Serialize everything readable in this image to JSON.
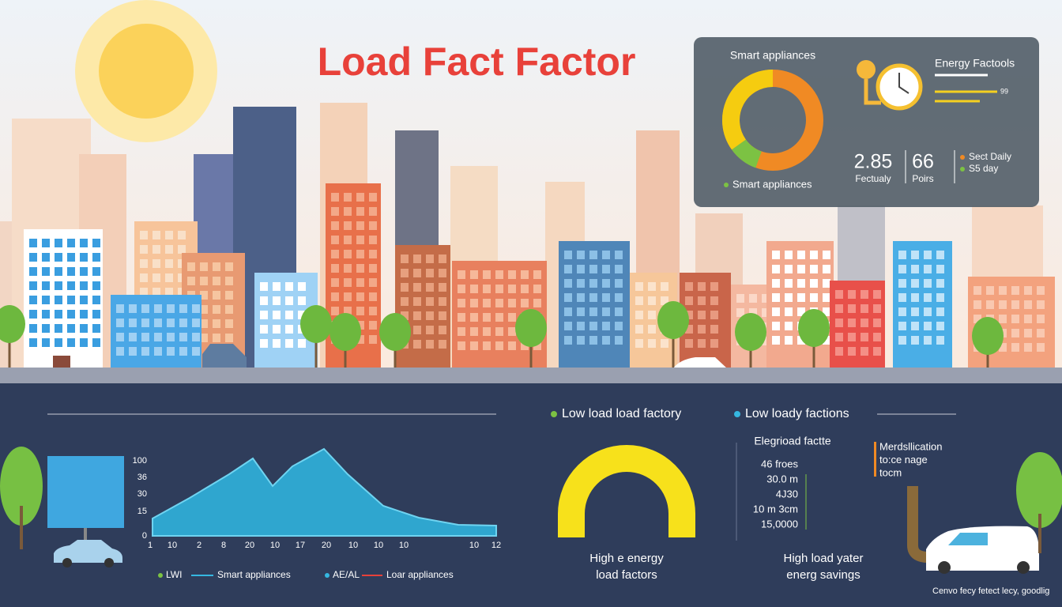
{
  "title": "Load Fact Factor",
  "panel": {
    "donut_title": "Smart appliances",
    "donut_legend": "Smart appliances",
    "gauge_title": "Energy Factools",
    "gauge_note": "99",
    "stats": [
      {
        "value": "2.85",
        "label": "Fectualy"
      },
      {
        "value": "66",
        "label": "Poirs"
      }
    ],
    "legend": [
      "Sect Daily",
      "S5 day"
    ]
  },
  "area_chart": {
    "y_labels": [
      "100",
      "36",
      "30",
      "15",
      "0"
    ],
    "x_labels": [
      "1",
      "10",
      "2",
      "8",
      "20",
      "10",
      "17",
      "20",
      "10",
      "10",
      "10",
      "10",
      "12"
    ],
    "legend": [
      {
        "key": "LWI",
        "name": "Smart appliances"
      },
      {
        "key": "AE/AL",
        "name": "Loar appliances"
      }
    ]
  },
  "legend_row": [
    "Low load load factory",
    "Low loady factions"
  ],
  "gauge": {
    "caption": [
      "High e energy",
      "load factors"
    ]
  },
  "list": {
    "title": "Elegrioad factte",
    "items": [
      "46 froes",
      "30.0 m",
      "4J30",
      "10 m 3cm",
      "15,0000"
    ]
  },
  "note": [
    "Merdsllication",
    "to:ce nage",
    "tocm"
  ],
  "savings": [
    "High load yater",
    "energ savings"
  ],
  "footer": "Cenvo fecy fetect lecy, goodlig"
}
